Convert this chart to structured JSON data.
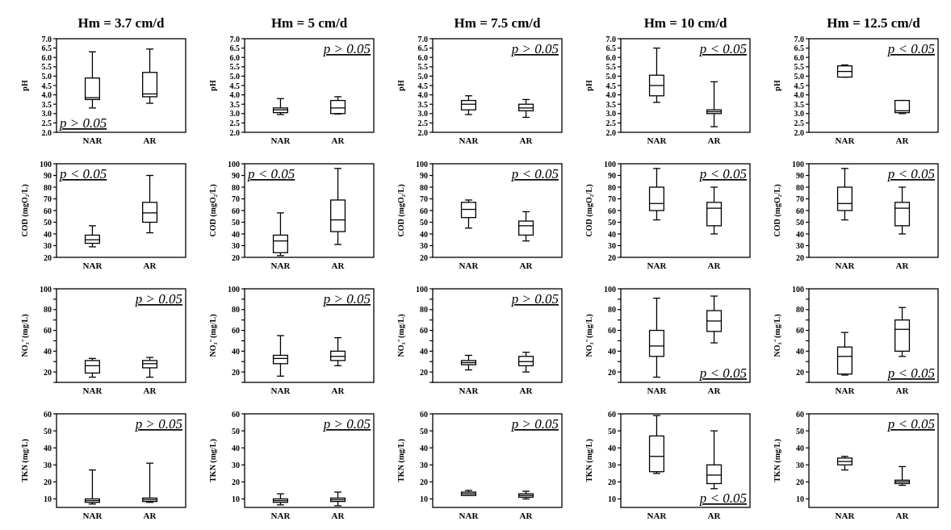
{
  "chart_data": [
    {
      "type": "box",
      "title": "Hm = 3.7 cm/d",
      "ylabel": "pH",
      "categories": [
        "NAR",
        "AR"
      ],
      "ylim": [
        2,
        7
      ],
      "yticks": [
        {
          "value": 2,
          "label": "2.0"
        },
        2.5,
        {
          "value": 3,
          "label": "3.0"
        },
        3.5,
        {
          "value": 4,
          "label": "4.0"
        },
        4.5,
        {
          "value": 5,
          "label": "5.0"
        },
        5.5,
        {
          "value": 6,
          "label": "6.0"
        },
        6.5,
        {
          "value": 7,
          "label": "7.0"
        }
      ],
      "annotations": [
        "p > 0.05"
      ],
      "boxes": [
        {
          "low": 3.3,
          "q1": 3.75,
          "median": 3.85,
          "q3": 4.9,
          "high": 6.3
        },
        {
          "low": 3.55,
          "q1": 3.9,
          "median": 4.05,
          "q3": 5.2,
          "high": 6.45
        }
      ]
    },
    {
      "type": "box",
      "title": "Hm = 5 cm/d",
      "ylabel": "pH",
      "categories": [
        "NAR",
        "AR"
      ],
      "ylim": [
        2,
        7
      ],
      "yticks": [
        {
          "value": 2,
          "label": "2.0"
        },
        2.5,
        {
          "value": 3,
          "label": "3.0"
        },
        3.5,
        {
          "value": 4,
          "label": "4.0"
        },
        4.5,
        {
          "value": 5,
          "label": "5.0"
        },
        5.5,
        {
          "value": 6,
          "label": "6.0"
        },
        6.5,
        {
          "value": 7,
          "label": "7.0"
        }
      ],
      "annotations": [
        "p > 0.05"
      ],
      "boxes": [
        {
          "low": 2.95,
          "q1": 3.05,
          "median": 3.2,
          "q3": 3.3,
          "high": 3.8
        },
        {
          "low": 2.98,
          "q1": 3.0,
          "median": 3.3,
          "q3": 3.7,
          "high": 3.9
        }
      ]
    },
    {
      "type": "box",
      "title": "Hm = 7.5 cm/d",
      "ylabel": "pH",
      "categories": [
        "NAR",
        "AR"
      ],
      "ylim": [
        2,
        7
      ],
      "yticks": [
        {
          "value": 2,
          "label": "2.0"
        },
        2.5,
        {
          "value": 3,
          "label": "3.0"
        },
        3.5,
        {
          "value": 4,
          "label": "4.0"
        },
        4.5,
        {
          "value": 5,
          "label": "5.0"
        },
        5.5,
        {
          "value": 6,
          "label": "6.0"
        },
        6.5,
        {
          "value": 7,
          "label": "7.0"
        }
      ],
      "annotations": [
        "p > 0.05"
      ],
      "boxes": [
        {
          "low": 2.95,
          "q1": 3.2,
          "median": 3.5,
          "q3": 3.7,
          "high": 3.95
        },
        {
          "low": 2.8,
          "q1": 3.15,
          "median": 3.3,
          "q3": 3.5,
          "high": 3.75
        }
      ]
    },
    {
      "type": "box",
      "title": "Hm = 10 cm/d",
      "ylabel": "pH",
      "categories": [
        "NAR",
        "AR"
      ],
      "ylim": [
        2,
        7
      ],
      "yticks": [
        {
          "value": 2,
          "label": "2.0"
        },
        2.5,
        {
          "value": 3,
          "label": "3.0"
        },
        3.5,
        {
          "value": 4,
          "label": "4.0"
        },
        4.5,
        {
          "value": 5,
          "label": "5.0"
        },
        5.5,
        {
          "value": 6,
          "label": "6.0"
        },
        6.5,
        {
          "value": 7,
          "label": "7.0"
        }
      ],
      "annotations": [
        "p < 0.05"
      ],
      "boxes": [
        {
          "low": 3.6,
          "q1": 3.95,
          "median": 4.5,
          "q3": 5.05,
          "high": 6.5
        },
        {
          "low": 2.3,
          "q1": 3.0,
          "median": 3.1,
          "q3": 3.2,
          "high": 4.7
        }
      ]
    },
    {
      "type": "box",
      "title": "Hm = 12.5 cm/d",
      "ylabel": "pH",
      "categories": [
        "NAR",
        "AR"
      ],
      "ylim": [
        2,
        7
      ],
      "yticks": [
        {
          "value": 2,
          "label": "2.0"
        },
        2.5,
        {
          "value": 3,
          "label": "3.0"
        },
        3.5,
        {
          "value": 4,
          "label": "4.0"
        },
        4.5,
        {
          "value": 5,
          "label": "5.0"
        },
        5.5,
        {
          "value": 6,
          "label": "6.0"
        },
        6.5,
        {
          "value": 7,
          "label": "7.0"
        }
      ],
      "annotations": [
        "p < 0.05"
      ],
      "boxes": [
        {
          "low": 4.95,
          "q1": 4.95,
          "median": 5.25,
          "q3": 5.55,
          "high": 5.6
        },
        {
          "low": 3.0,
          "q1": 3.05,
          "median": 3.15,
          "q3": 3.7,
          "high": 3.7
        }
      ]
    },
    {
      "type": "box",
      "ylabel": "COD (mgO₂/L)",
      "categories": [
        "NAR",
        "AR"
      ],
      "ylim": [
        20,
        100
      ],
      "yticks": [
        20,
        30,
        40,
        50,
        60,
        70,
        80,
        90,
        100
      ],
      "annotations": [
        "p < 0.05"
      ],
      "boxes": [
        {
          "low": 29,
          "q1": 32,
          "median": 35,
          "q3": 39,
          "high": 47
        },
        {
          "low": 41,
          "q1": 50,
          "median": 58,
          "q3": 67,
          "high": 90
        }
      ]
    },
    {
      "type": "box",
      "ylabel": "COD (mgO₂/L)",
      "categories": [
        "NAR",
        "AR"
      ],
      "ylim": [
        20,
        100
      ],
      "yticks": [
        20,
        30,
        40,
        50,
        60,
        70,
        80,
        90,
        100
      ],
      "annotations": [
        "p < 0.05"
      ],
      "boxes": [
        {
          "low": 21.5,
          "q1": 24,
          "median": 34,
          "q3": 39,
          "high": 58
        },
        {
          "low": 31,
          "q1": 42,
          "median": 52,
          "q3": 69,
          "high": 96
        }
      ]
    },
    {
      "type": "box",
      "ylabel": "COD (mgO₂/L)",
      "categories": [
        "NAR",
        "AR"
      ],
      "ylim": [
        20,
        100
      ],
      "yticks": [
        20,
        30,
        40,
        50,
        60,
        70,
        80,
        90,
        100
      ],
      "annotations": [
        "p < 0.05"
      ],
      "boxes": [
        {
          "low": 45,
          "q1": 54,
          "median": 61,
          "q3": 67,
          "high": 69
        },
        {
          "low": 34,
          "q1": 39,
          "median": 47,
          "q3": 51,
          "high": 59
        }
      ]
    },
    {
      "type": "box",
      "ylabel": "COD (mgO₂/L)",
      "categories": [
        "NAR",
        "AR"
      ],
      "ylim": [
        20,
        100
      ],
      "yticks": [
        20,
        30,
        40,
        50,
        60,
        70,
        80,
        90,
        100
      ],
      "annotations": [
        "p < 0.05"
      ],
      "boxes": [
        {
          "low": 52,
          "q1": 60,
          "median": 66,
          "q3": 80,
          "high": 96
        },
        {
          "low": 40,
          "q1": 47,
          "median": 62,
          "q3": 67,
          "high": 80
        }
      ]
    },
    {
      "type": "box",
      "ylabel": "COD (mgO₂/L)",
      "categories": [
        "NAR",
        "AR"
      ],
      "ylim": [
        20,
        100
      ],
      "yticks": [
        20,
        30,
        40,
        50,
        60,
        70,
        80,
        90,
        100
      ],
      "annotations": [
        "p < 0.05"
      ],
      "boxes": [
        {
          "low": 52,
          "q1": 60,
          "median": 66,
          "q3": 80,
          "high": 96
        },
        {
          "low": 40,
          "q1": 47,
          "median": 62,
          "q3": 67,
          "high": 80
        }
      ]
    },
    {
      "type": "box",
      "ylabel": "NO₃⁻ (mg/L)",
      "categories": [
        "NAR",
        "AR"
      ],
      "ylim": [
        10,
        100
      ],
      "yticks": [
        {
          "value": 10,
          "label": null
        },
        20,
        {
          "value": 30,
          "label": null
        },
        40,
        {
          "value": 50,
          "label": null
        },
        60,
        {
          "value": 70,
          "label": null
        },
        80,
        {
          "value": 90,
          "label": null
        },
        100
      ],
      "annotations": [
        "p > 0.05"
      ],
      "boxes": [
        {
          "low": 15,
          "q1": 19,
          "median": 26,
          "q3": 31,
          "high": 33
        },
        {
          "low": 15,
          "q1": 24,
          "median": 28,
          "q3": 31,
          "high": 34
        }
      ]
    },
    {
      "type": "box",
      "ylabel": "NO₃⁻ (mg/L)",
      "categories": [
        "NAR",
        "AR"
      ],
      "ylim": [
        10,
        100
      ],
      "yticks": [
        {
          "value": 10,
          "label": null
        },
        20,
        {
          "value": 30,
          "label": null
        },
        40,
        {
          "value": 50,
          "label": null
        },
        60,
        {
          "value": 70,
          "label": null
        },
        80,
        {
          "value": 90,
          "label": null
        },
        100
      ],
      "annotations": [
        "p > 0.05"
      ],
      "boxes": [
        {
          "low": 16,
          "q1": 28,
          "median": 33,
          "q3": 36,
          "high": 55
        },
        {
          "low": 26,
          "q1": 31,
          "median": 35,
          "q3": 40,
          "high": 53
        }
      ]
    },
    {
      "type": "box",
      "ylabel": "NO₃⁻ (mg/L)",
      "categories": [
        "NAR",
        "AR"
      ],
      "ylim": [
        10,
        100
      ],
      "yticks": [
        {
          "value": 10,
          "label": null
        },
        20,
        {
          "value": 30,
          "label": null
        },
        40,
        {
          "value": 50,
          "label": null
        },
        60,
        {
          "value": 70,
          "label": null
        },
        80,
        {
          "value": 90,
          "label": null
        },
        100
      ],
      "annotations": [
        "p > 0.05"
      ],
      "boxes": [
        {
          "low": 22,
          "q1": 27,
          "median": 29,
          "q3": 31,
          "high": 36
        },
        {
          "low": 20,
          "q1": 26,
          "median": 30,
          "q3": 35,
          "high": 39
        }
      ]
    },
    {
      "type": "box",
      "ylabel": "NO₃⁻ (mg/L)",
      "categories": [
        "NAR",
        "AR"
      ],
      "ylim": [
        10,
        100
      ],
      "yticks": [
        {
          "value": 10,
          "label": null
        },
        20,
        {
          "value": 30,
          "label": null
        },
        40,
        {
          "value": 50,
          "label": null
        },
        60,
        {
          "value": 70,
          "label": null
        },
        80,
        {
          "value": 90,
          "label": null
        },
        100
      ],
      "annotations": [
        "p < 0.05"
      ],
      "boxes": [
        {
          "low": 15,
          "q1": 35,
          "median": 45,
          "q3": 60,
          "high": 91
        },
        {
          "low": 48,
          "q1": 59,
          "median": 69,
          "q3": 79,
          "high": 93
        }
      ]
    },
    {
      "type": "box",
      "ylabel": "NO₃⁻ (mg/L)",
      "categories": [
        "NAR",
        "AR"
      ],
      "ylim": [
        10,
        100
      ],
      "yticks": [
        {
          "value": 10,
          "label": null
        },
        20,
        {
          "value": 30,
          "label": null
        },
        40,
        {
          "value": 50,
          "label": null
        },
        60,
        {
          "value": 70,
          "label": null
        },
        80,
        {
          "value": 90,
          "label": null
        },
        100
      ],
      "annotations": [
        "p < 0.05"
      ],
      "boxes": [
        {
          "low": 17,
          "q1": 18,
          "median": 35,
          "q3": 44,
          "high": 58
        },
        {
          "low": 35,
          "q1": 40,
          "median": 61,
          "q3": 70,
          "high": 82
        }
      ]
    },
    {
      "type": "box",
      "ylabel": "TKN (mg/L)",
      "categories": [
        "NAR",
        "AR"
      ],
      "ylim": [
        5,
        60
      ],
      "yticks": [
        10,
        20,
        30,
        40,
        50,
        60
      ],
      "annotations": [
        "p > 0.05"
      ],
      "boxes": [
        {
          "low": 7,
          "q1": 8,
          "median": 9,
          "q3": 10,
          "high": 27
        },
        {
          "low": 8,
          "q1": 8.5,
          "median": 9.5,
          "q3": 10.5,
          "high": 31
        }
      ]
    },
    {
      "type": "box",
      "ylabel": "TKN (mg/L)",
      "categories": [
        "NAR",
        "AR"
      ],
      "ylim": [
        5,
        60
      ],
      "yticks": [
        10,
        20,
        30,
        40,
        50,
        60
      ],
      "annotations": [
        "p > 0.05"
      ],
      "boxes": [
        {
          "low": 6.5,
          "q1": 8,
          "median": 9,
          "q3": 10,
          "high": 13
        },
        {
          "low": 6,
          "q1": 8.5,
          "median": 9.5,
          "q3": 10.5,
          "high": 14
        }
      ]
    },
    {
      "type": "box",
      "ylabel": "TKN (mg/L)",
      "categories": [
        "NAR",
        "AR"
      ],
      "ylim": [
        5,
        60
      ],
      "yticks": [
        10,
        20,
        30,
        40,
        50,
        60
      ],
      "annotations": [
        "p > 0.05"
      ],
      "boxes": [
        {
          "low": 12,
          "q1": 12,
          "median": 13,
          "q3": 14,
          "high": 15
        },
        {
          "low": 10,
          "q1": 11,
          "median": 12,
          "q3": 13,
          "high": 14.5
        }
      ]
    },
    {
      "type": "box",
      "ylabel": "TKN (mg/L)",
      "categories": [
        "NAR",
        "AR"
      ],
      "ylim": [
        5,
        60
      ],
      "yticks": [
        10,
        20,
        30,
        40,
        50,
        60
      ],
      "annotations": [
        "p < 0.05"
      ],
      "boxes": [
        {
          "low": 25,
          "q1": 26,
          "median": 35,
          "q3": 47,
          "high": 59
        },
        {
          "low": 16,
          "q1": 19,
          "median": 24,
          "q3": 30,
          "high": 50
        }
      ]
    },
    {
      "type": "box",
      "ylabel": "TKN (mg/L)",
      "categories": [
        "NAR",
        "AR"
      ],
      "ylim": [
        5,
        60
      ],
      "yticks": [
        10,
        20,
        30,
        40,
        50,
        60
      ],
      "annotations": [
        "p < 0.05"
      ],
      "boxes": [
        {
          "low": 27,
          "q1": 30,
          "median": 32,
          "q3": 34,
          "high": 35
        },
        {
          "low": 18,
          "q1": 19,
          "median": 20,
          "q3": 21,
          "high": 29
        }
      ]
    }
  ]
}
